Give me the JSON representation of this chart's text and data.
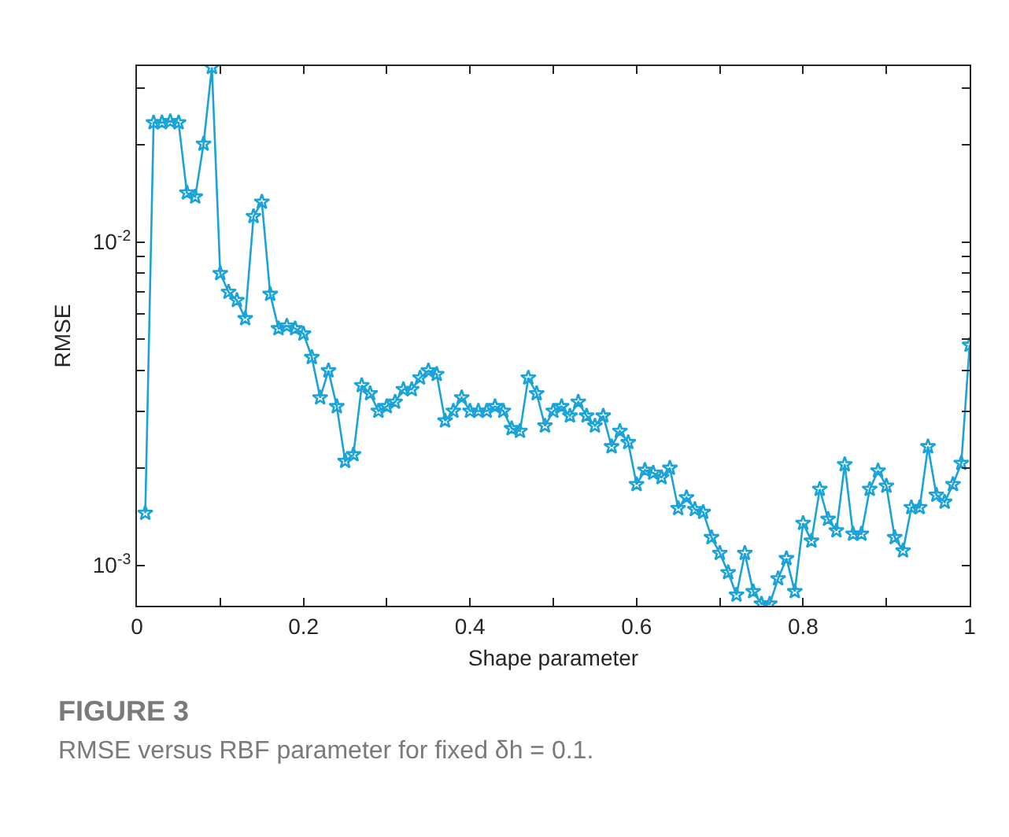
{
  "chart_data": {
    "type": "line",
    "title": "FIGURE 3",
    "subtitle": "RMSE versus RBF parameter for fixed δh = 0.1.",
    "xlabel": "Shape parameter",
    "ylabel": "RMSE",
    "log": true,
    "grid": false,
    "marker": "star",
    "line_style": "solid",
    "xlim": [
      0,
      1
    ],
    "xticks": [
      0,
      {
        "value": 0.1,
        "label": null
      },
      0.2,
      {
        "value": 0.3,
        "label": null
      },
      0.4,
      {
        "value": 0.5,
        "label": null
      },
      0.6,
      {
        "value": 0.7,
        "label": null
      },
      0.8,
      {
        "value": 0.9,
        "label": null
      },
      1
    ],
    "ylim": [
      0.00075,
      0.035
    ],
    "yticks": [
      {
        "value": 0.001,
        "label": "10$^{-3}$"
      },
      {
        "value": 0.002,
        "label": null
      },
      {
        "value": 0.003,
        "label": null
      },
      {
        "value": 0.004,
        "label": null
      },
      {
        "value": 0.005,
        "label": null
      },
      {
        "value": 0.006,
        "label": null
      },
      {
        "value": 0.007,
        "label": null
      },
      {
        "value": 0.008,
        "label": null
      },
      {
        "value": 0.009,
        "label": null
      },
      {
        "value": 0.01,
        "label": "10$^{-2}$"
      },
      {
        "value": 0.02,
        "label": null
      },
      {
        "value": 0.03,
        "label": null
      }
    ],
    "x": [
      0.01,
      0.02,
      0.03,
      0.04,
      0.05,
      0.06,
      0.07,
      0.08,
      0.09,
      0.1,
      0.11,
      0.12,
      0.13,
      0.14,
      0.15,
      0.16,
      0.17,
      0.18,
      0.19,
      0.2,
      0.21,
      0.22,
      0.23,
      0.24,
      0.25,
      0.26,
      0.27,
      0.28,
      0.29,
      0.3,
      0.31,
      0.32,
      0.33,
      0.34,
      0.35,
      0.36,
      0.37,
      0.38,
      0.39,
      0.4,
      0.41,
      0.42,
      0.43,
      0.44,
      0.45,
      0.46,
      0.47,
      0.48,
      0.49,
      0.5,
      0.51,
      0.52,
      0.53,
      0.54,
      0.55,
      0.56,
      0.57,
      0.58,
      0.59,
      0.6,
      0.61,
      0.62,
      0.63,
      0.64,
      0.65,
      0.66,
      0.67,
      0.68,
      0.69,
      0.7,
      0.71,
      0.72,
      0.73,
      0.74,
      0.75,
      0.76,
      0.77,
      0.78,
      0.79,
      0.8,
      0.81,
      0.82,
      0.83,
      0.84,
      0.85,
      0.86,
      0.87,
      0.88,
      0.89,
      0.9,
      0.91,
      0.92,
      0.93,
      0.94,
      0.95,
      0.96,
      0.97,
      0.98,
      0.99,
      1
    ],
    "series": [
      {
        "color": "#1aa3d9",
        "values": [
          0.00145,
          0.0234,
          0.0234,
          0.0236,
          0.0234,
          0.0142,
          0.0138,
          0.0201,
          0.0347,
          0.008,
          0.007,
          0.0066,
          0.0058,
          0.012,
          0.0133,
          0.0069,
          0.0054,
          0.0055,
          0.0054,
          0.0052,
          0.0044,
          0.0033,
          0.004,
          0.0031,
          0.0021,
          0.0022,
          0.0036,
          0.0034,
          0.003,
          0.0031,
          0.0032,
          0.0035,
          0.0035,
          0.0038,
          0.004,
          0.0039,
          0.0028,
          0.003,
          0.0033,
          0.003,
          0.003,
          0.003,
          0.0031,
          0.003,
          0.00265,
          0.0026,
          0.0038,
          0.0034,
          0.0027,
          0.003,
          0.0031,
          0.0029,
          0.0032,
          0.0029,
          0.0027,
          0.0029,
          0.00233,
          0.0026,
          0.0024,
          0.00178,
          0.00197,
          0.00193,
          0.00187,
          0.002,
          0.0015,
          0.00162,
          0.00149,
          0.00146,
          0.00122,
          0.00109,
          0.00095,
          0.00081,
          0.00109,
          0.00083,
          0.00076,
          0.00076,
          0.00091,
          0.00105,
          0.00083,
          0.00135,
          0.00119,
          0.00172,
          0.00139,
          0.00128,
          0.00205,
          0.00125,
          0.00125,
          0.00172,
          0.00196,
          0.00176,
          0.00122,
          0.00111,
          0.00151,
          0.00151,
          0.00233,
          0.00165,
          0.00157,
          0.00178,
          0.00207,
          0.0048
        ]
      }
    ]
  }
}
